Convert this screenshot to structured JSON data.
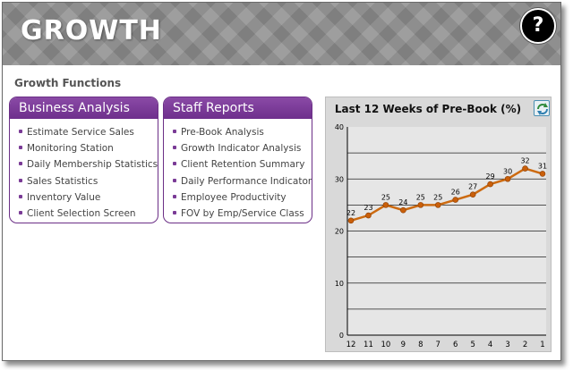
{
  "header": {
    "title": "GROWTH",
    "help_label": "?"
  },
  "section_title": "Growth Functions",
  "business_analysis": {
    "title": "Business Analysis",
    "items": [
      "Estimate Service Sales",
      "Monitoring Station",
      "Daily Membership Statistics",
      "Sales Statistics",
      "Inventory Value",
      "Client Selection Screen"
    ]
  },
  "staff_reports": {
    "title": "Staff Reports",
    "items": [
      "Pre-Book Analysis",
      "Growth Indicator Analysis",
      "Client Retention Summary",
      "Daily Performance Indicators",
      "Employee Productivity",
      "FOV by Emp/Service Class"
    ]
  },
  "colors": {
    "panel_header": "#7a3b96",
    "line": "#cc6a10",
    "chart_bg": "#d9d9d9"
  },
  "chart": {
    "refresh_icon": "refresh-icon"
  },
  "chart_data": {
    "type": "line",
    "title": "Last 12 Weeks of Pre-Book (%)",
    "categories": [
      "12",
      "11",
      "10",
      "9",
      "8",
      "7",
      "6",
      "5",
      "4",
      "3",
      "2",
      "1"
    ],
    "values": [
      22,
      23,
      25,
      24,
      25,
      25,
      26,
      27,
      29,
      30,
      32,
      31
    ],
    "ylim": [
      0,
      40
    ],
    "yticks": [
      "0",
      "10",
      "20",
      "30",
      "40"
    ],
    "grid": true
  }
}
